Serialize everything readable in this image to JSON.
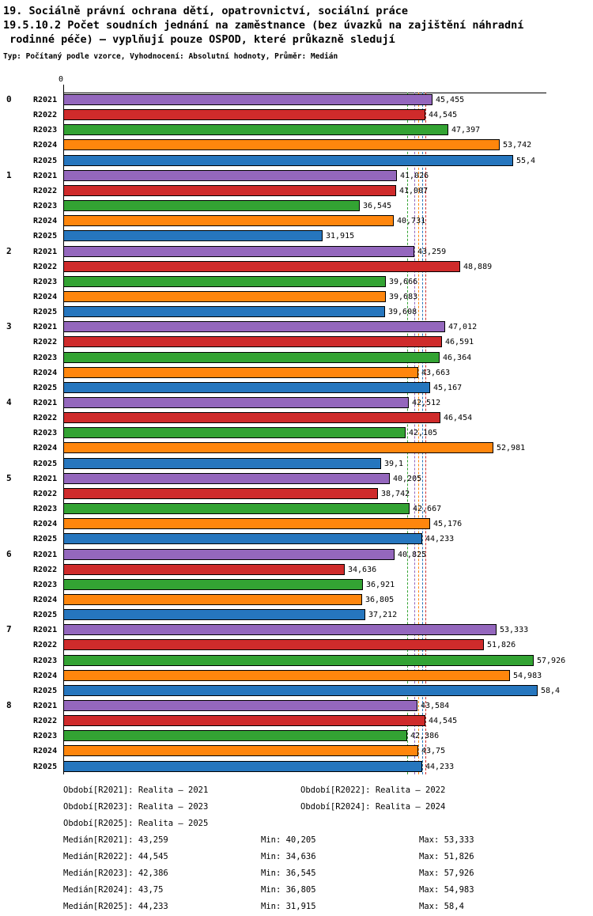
{
  "header": {
    "title_line1": "19. Sociálně právní ochrana dětí, opatrovnictví, sociální práce",
    "title_line2": "19.5.10.2 Počet soudních jednání na zaměstnance (bez úvazků na zajištění náhradní",
    "title_line3": " rodinné péče) – vyplňují pouze OSPOD, které průkazně sledují",
    "meta_line": "Typ: Počítaný podle vzorce, Vyhodnocení: Absolutní hodnoty, Průměr: Medián"
  },
  "chart_data": {
    "type": "bar",
    "orientation": "horizontal",
    "title": "19.5.10.2 Počet soudních jednání na zaměstnance (bez úvazků na zajištění náhradní rodinné péče) – vyplňují pouze OSPOD, které průkazně sledují",
    "categories": [
      "0",
      "1",
      "2",
      "3",
      "4",
      "5",
      "6",
      "7",
      "8"
    ],
    "x_ticks": [
      "0"
    ],
    "xlim": [
      0,
      58.4
    ],
    "grid": false,
    "decimal_separator": ",",
    "series": [
      {
        "name": "R2021",
        "color": "#9467BD",
        "values": [
          45.455,
          41.026,
          43.259,
          47.012,
          42.512,
          40.205,
          40.825,
          53.333,
          43.584
        ],
        "median": 43.259,
        "min": 40.205,
        "max": 53.333
      },
      {
        "name": "R2022",
        "color": "#CF2B2B",
        "values": [
          44.545,
          41.007,
          48.889,
          46.591,
          46.454,
          38.742,
          34.636,
          51.826,
          44.545
        ],
        "median": 44.545,
        "min": 34.636,
        "max": 51.826
      },
      {
        "name": "R2023",
        "color": "#33A333",
        "values": [
          47.397,
          36.545,
          39.666,
          46.364,
          42.105,
          42.667,
          36.921,
          57.926,
          42.386
        ],
        "median": 42.386,
        "min": 36.545,
        "max": 57.926
      },
      {
        "name": "R2024",
        "color": "#FF860D",
        "values": [
          53.742,
          40.731,
          39.683,
          43.663,
          52.981,
          45.176,
          36.805,
          54.983,
          43.75
        ],
        "median": 43.75,
        "min": 36.805,
        "max": 54.983
      },
      {
        "name": "R2025",
        "color": "#2676BE",
        "values": [
          55.4,
          31.915,
          39.608,
          45.167,
          39.1,
          44.233,
          37.212,
          58.4,
          44.233
        ],
        "median": 44.233,
        "min": 31.915,
        "max": 58.4
      }
    ]
  },
  "legend": {
    "items": [
      "Období[R2021]: Realita – 2021",
      "Období[R2022]: Realita – 2022",
      "Období[R2023]: Realita – 2023",
      "Období[R2024]: Realita – 2024",
      "Období[R2025]: Realita – 2025"
    ]
  },
  "stats": {
    "rows": [
      {
        "median": "Medián[R2021]: 43,259",
        "min": "Min: 40,205",
        "max": "Max: 53,333"
      },
      {
        "median": "Medián[R2022]: 44,545",
        "min": "Min: 34,636",
        "max": "Max: 51,826"
      },
      {
        "median": "Medián[R2023]: 42,386",
        "min": "Min: 36,545",
        "max": "Max: 57,926"
      },
      {
        "median": "Medián[R2024]: 43,75",
        "min": "Min: 36,805",
        "max": "Max: 54,983"
      },
      {
        "median": "Medián[R2025]: 44,233",
        "min": "Min: 31,915",
        "max": "Max: 58,4"
      }
    ]
  }
}
